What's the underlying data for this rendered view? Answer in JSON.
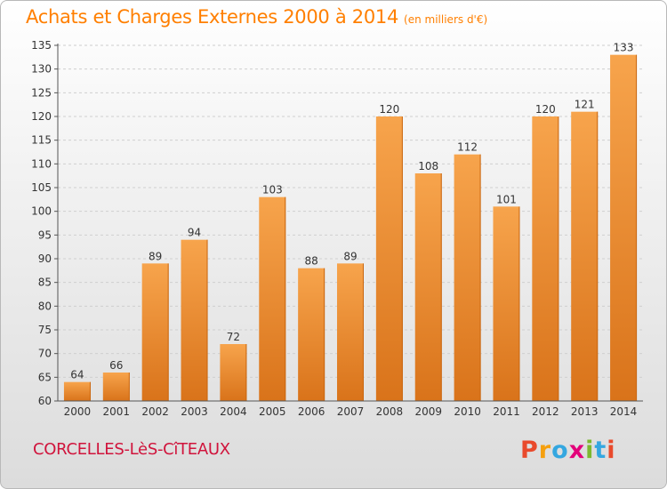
{
  "header": {
    "title": "Achats et Charges Externes 2000 à 2014",
    "unit": "(en milliers d'€)"
  },
  "footer": {
    "commune": "CORCELLES-LèS-CîTEAUX",
    "brand": "Proxiti",
    "brand_colors": [
      "#e94a2c",
      "#f5a00f",
      "#34a7e0",
      "#e3007a",
      "#7cb82f",
      "#34a7e0",
      "#e94a2c"
    ]
  },
  "colors": {
    "bar_light": "#f7a44c",
    "bar_dark": "#d9731a",
    "title": "#ff7f00",
    "commune": "#d0143c",
    "grid": "#cfcfcf"
  },
  "chart_data": {
    "type": "bar",
    "categories": [
      "2000",
      "2001",
      "2002",
      "2003",
      "2004",
      "2005",
      "2006",
      "2007",
      "2008",
      "2009",
      "2010",
      "2011",
      "2012",
      "2013",
      "2014"
    ],
    "values": [
      64,
      66,
      89,
      94,
      72,
      103,
      88,
      89,
      120,
      108,
      112,
      101,
      120,
      121,
      133
    ],
    "ylim": [
      60,
      135
    ],
    "yticks": [
      60,
      65,
      70,
      75,
      80,
      85,
      90,
      95,
      100,
      105,
      110,
      115,
      120,
      125,
      130,
      135
    ],
    "grid": true,
    "title": "Achats et Charges Externes 2000 à 2014",
    "xlabel": "",
    "ylabel": ""
  }
}
